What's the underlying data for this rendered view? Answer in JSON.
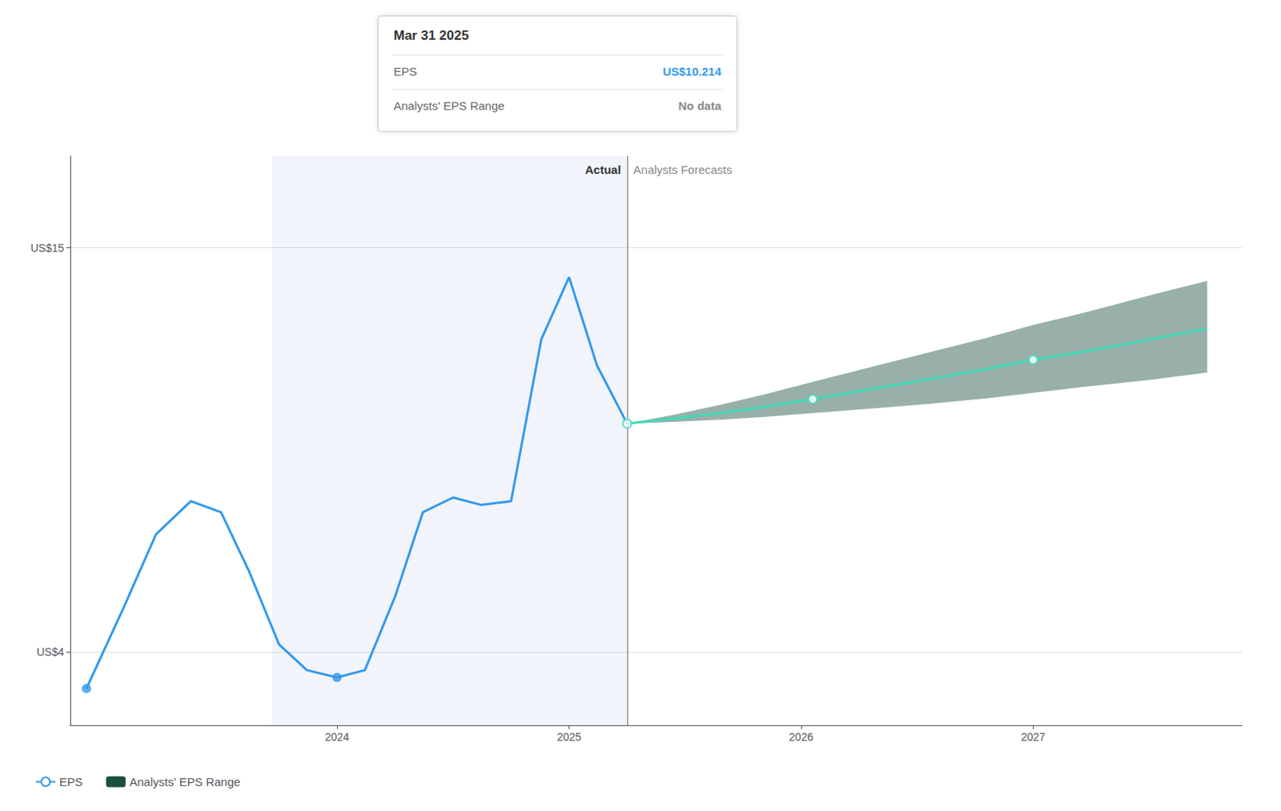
{
  "chart_data": {
    "type": "line",
    "xlim": [
      2022.85,
      2027.9
    ],
    "xticks": [
      2024,
      2025,
      2026,
      2027
    ],
    "ylim": [
      2.0,
      17.5
    ],
    "yticks": [
      {
        "value": 4,
        "label": "US$4"
      },
      {
        "value": 15,
        "label": "US$15"
      }
    ],
    "grid": true,
    "legend": "bottom",
    "highlight_x": [
      2023.72,
      2025.25
    ],
    "divider_x": 2025.25,
    "annotations": [
      {
        "text": "Actual",
        "x": 2025.25,
        "align": "right"
      },
      {
        "text": "Analysts Forecasts",
        "x": 2025.25,
        "align": "left"
      }
    ],
    "tooltip_box": {
      "title": "Mar 31 2025",
      "rows": [
        {
          "label": "EPS",
          "value": "US$10.214",
          "color": "#3399ee"
        },
        {
          "label": "Analysts' EPS Range",
          "value": "No data",
          "color": "#888888"
        }
      ]
    },
    "series": [
      {
        "name": "EPS",
        "type": "line",
        "color": "#3399ee",
        "x": [
          2022.92,
          2023.08,
          2023.22,
          2023.37,
          2023.5,
          2023.62,
          2023.75,
          2023.87,
          2024.0,
          2024.12,
          2024.25,
          2024.37,
          2024.5,
          2024.62,
          2024.75,
          2024.88,
          2025.0,
          2025.12,
          2025.25
        ],
        "values": [
          3.0,
          5.2,
          7.2,
          8.1,
          7.8,
          6.2,
          4.2,
          3.5,
          3.3,
          3.5,
          5.5,
          7.8,
          8.2,
          8.0,
          8.1,
          12.5,
          14.2,
          11.8,
          10.214
        ],
        "dot_x": [
          2022.92,
          2024.0
        ],
        "dot_values": [
          3.0,
          3.3
        ],
        "marker": "filled_circle"
      },
      {
        "name": "Analysts' EPS Range",
        "type": "band",
        "color": "#1a5040",
        "x": [
          2025.25,
          2025.45,
          2025.65,
          2025.85,
          2026.05,
          2026.3,
          2026.55,
          2026.8,
          2027.0,
          2027.2,
          2027.5,
          2027.75
        ],
        "upper": [
          10.214,
          10.45,
          10.72,
          11.02,
          11.35,
          11.75,
          12.15,
          12.55,
          12.9,
          13.2,
          13.7,
          14.1
        ],
        "lower": [
          10.214,
          10.26,
          10.32,
          10.4,
          10.5,
          10.62,
          10.75,
          10.9,
          11.05,
          11.2,
          11.4,
          11.6
        ]
      },
      {
        "type": "line",
        "color": "#40d9b8",
        "x": [
          2025.25,
          2025.45,
          2025.65,
          2025.85,
          2026.05,
          2026.3,
          2026.55,
          2026.8,
          2027.0,
          2027.2,
          2027.5,
          2027.75
        ],
        "values": [
          10.214,
          10.35,
          10.5,
          10.68,
          10.88,
          11.15,
          11.42,
          11.7,
          11.95,
          12.15,
          12.5,
          12.8
        ],
        "dot_x": [
          2025.25,
          2026.05,
          2027.0
        ],
        "dot_values": [
          10.214,
          10.88,
          11.95
        ],
        "marker": "hollow_circle"
      }
    ]
  }
}
